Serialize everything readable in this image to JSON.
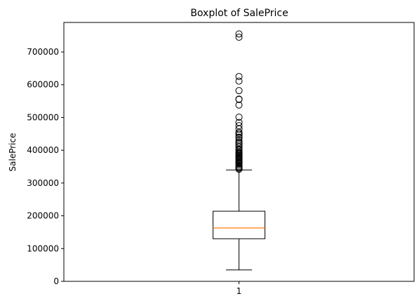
{
  "chart_data": {
    "type": "boxplot",
    "title": "Boxplot of SalePrice",
    "xlabel": "",
    "ylabel": "SalePrice",
    "categories": [
      "1"
    ],
    "ylim": [
      0,
      790000
    ],
    "yticks": [
      0,
      100000,
      200000,
      300000,
      400000,
      500000,
      600000,
      700000
    ],
    "ytick_labels": [
      "0",
      "100000",
      "200000",
      "300000",
      "400000",
      "500000",
      "600000",
      "700000"
    ],
    "grid": false,
    "boxes": [
      {
        "category": "1",
        "whisker_low": 34900,
        "q1": 129975,
        "median": 163000,
        "q3": 214000,
        "whisker_high": 340000,
        "outliers": [
          342000,
          345000,
          348000,
          350000,
          354000,
          358000,
          360000,
          362000,
          365000,
          367000,
          370000,
          372000,
          375000,
          378000,
          380000,
          383000,
          385000,
          388000,
          390000,
          392000,
          395000,
          400000,
          403000,
          410000,
          415000,
          420000,
          424000,
          430000,
          438000,
          440000,
          446000,
          451000,
          455000,
          465000,
          475000,
          485000,
          501000,
          538000,
          555000,
          556000,
          582000,
          611000,
          625000,
          745000,
          755000
        ]
      }
    ],
    "colors": {
      "box": "#000000",
      "median": "#ff7f0e",
      "outlier": "#000000"
    }
  }
}
